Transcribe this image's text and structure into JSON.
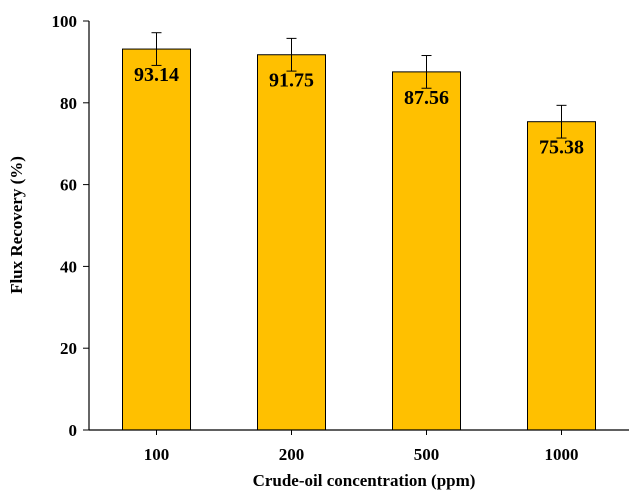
{
  "chart_data": {
    "type": "bar",
    "categories": [
      "100",
      "200",
      "500",
      "1000"
    ],
    "series": [
      {
        "values": [
          93.14,
          91.75,
          87.56,
          75.38
        ],
        "errors": [
          4.0,
          4.0,
          4.0,
          4.0
        ],
        "data_labels": [
          "93.14",
          "91.75",
          "87.56",
          "75.38"
        ]
      }
    ],
    "title": "",
    "xlabel": "Crude-oil concentration (ppm)",
    "ylabel": "Flux Recovery (%)",
    "ylim": [
      0,
      100
    ],
    "yticks": [
      0,
      20,
      40,
      60,
      80,
      100
    ],
    "grid": false,
    "legend": "none",
    "colors": {
      "bar_fill": "#FFC000",
      "bar_stroke": "#000000"
    }
  }
}
